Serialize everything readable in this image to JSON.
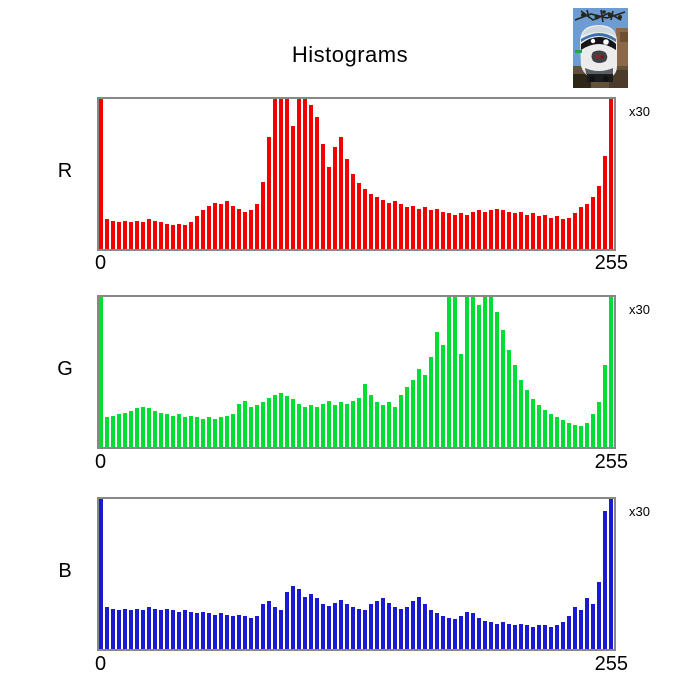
{
  "title": "Histograms",
  "thumbnail": {
    "description": "train-photo"
  },
  "chart_data": [
    {
      "type": "bar",
      "channel": "red",
      "label": "R",
      "bar_color": "#f20000",
      "frame_color": "#888888",
      "scale_label": "x30",
      "x_axis": {
        "min_label": "0",
        "max_label": "255",
        "range": [
          0,
          255
        ]
      },
      "bins": 86,
      "y_unit": "percent_of_plot_height_clipped_at_100",
      "values": [
        100,
        20,
        19,
        18,
        19,
        18,
        19,
        18,
        20,
        19,
        18,
        17,
        16,
        17,
        16,
        18,
        22,
        26,
        29,
        31,
        30,
        32,
        29,
        27,
        25,
        26,
        30,
        45,
        75,
        100,
        100,
        100,
        82,
        100,
        100,
        96,
        88,
        70,
        55,
        68,
        75,
        60,
        50,
        44,
        40,
        37,
        35,
        33,
        31,
        32,
        30,
        28,
        29,
        27,
        28,
        26,
        27,
        25,
        24,
        23,
        24,
        23,
        25,
        26,
        25,
        26,
        27,
        26,
        25,
        24,
        25,
        23,
        24,
        22,
        23,
        21,
        22,
        20,
        21,
        24,
        28,
        30,
        35,
        42,
        62,
        100
      ]
    },
    {
      "type": "bar",
      "channel": "green",
      "label": "G",
      "bar_color": "#00dd33",
      "frame_color": "#888888",
      "scale_label": "x30",
      "x_axis": {
        "min_label": "0",
        "max_label": "255",
        "range": [
          0,
          255
        ]
      },
      "bins": 86,
      "y_unit": "percent_of_plot_height_clipped_at_100",
      "values": [
        100,
        20,
        21,
        22,
        23,
        24,
        26,
        27,
        26,
        24,
        23,
        22,
        21,
        22,
        20,
        21,
        20,
        19,
        20,
        19,
        20,
        21,
        22,
        29,
        31,
        27,
        28,
        30,
        33,
        35,
        36,
        34,
        32,
        29,
        27,
        28,
        27,
        29,
        31,
        28,
        30,
        29,
        31,
        33,
        42,
        35,
        30,
        28,
        30,
        27,
        35,
        40,
        45,
        52,
        48,
        60,
        77,
        68,
        100,
        100,
        62,
        100,
        100,
        95,
        100,
        100,
        90,
        78,
        65,
        55,
        45,
        38,
        32,
        28,
        25,
        22,
        20,
        18,
        16,
        15,
        14,
        16,
        22,
        30,
        55,
        100
      ]
    },
    {
      "type": "bar",
      "channel": "blue",
      "label": "B",
      "bar_color": "#1a1ad2",
      "frame_color": "#888888",
      "scale_label": "x30",
      "x_axis": {
        "min_label": "0",
        "max_label": "255",
        "range": [
          0,
          255
        ]
      },
      "bins": 86,
      "y_unit": "percent_of_plot_height_clipped_at_100",
      "values": [
        100,
        28,
        27,
        26,
        27,
        26,
        27,
        26,
        28,
        27,
        26,
        27,
        26,
        25,
        26,
        25,
        24,
        25,
        24,
        23,
        24,
        23,
        22,
        23,
        22,
        21,
        22,
        30,
        32,
        28,
        26,
        38,
        42,
        40,
        35,
        37,
        34,
        30,
        29,
        31,
        33,
        30,
        28,
        27,
        26,
        30,
        32,
        34,
        31,
        28,
        27,
        28,
        32,
        35,
        30,
        26,
        24,
        22,
        21,
        20,
        22,
        25,
        24,
        21,
        19,
        18,
        17,
        18,
        17,
        16,
        17,
        16,
        15,
        16,
        16,
        15,
        16,
        18,
        22,
        28,
        26,
        34,
        30,
        45,
        92,
        100
      ]
    }
  ]
}
